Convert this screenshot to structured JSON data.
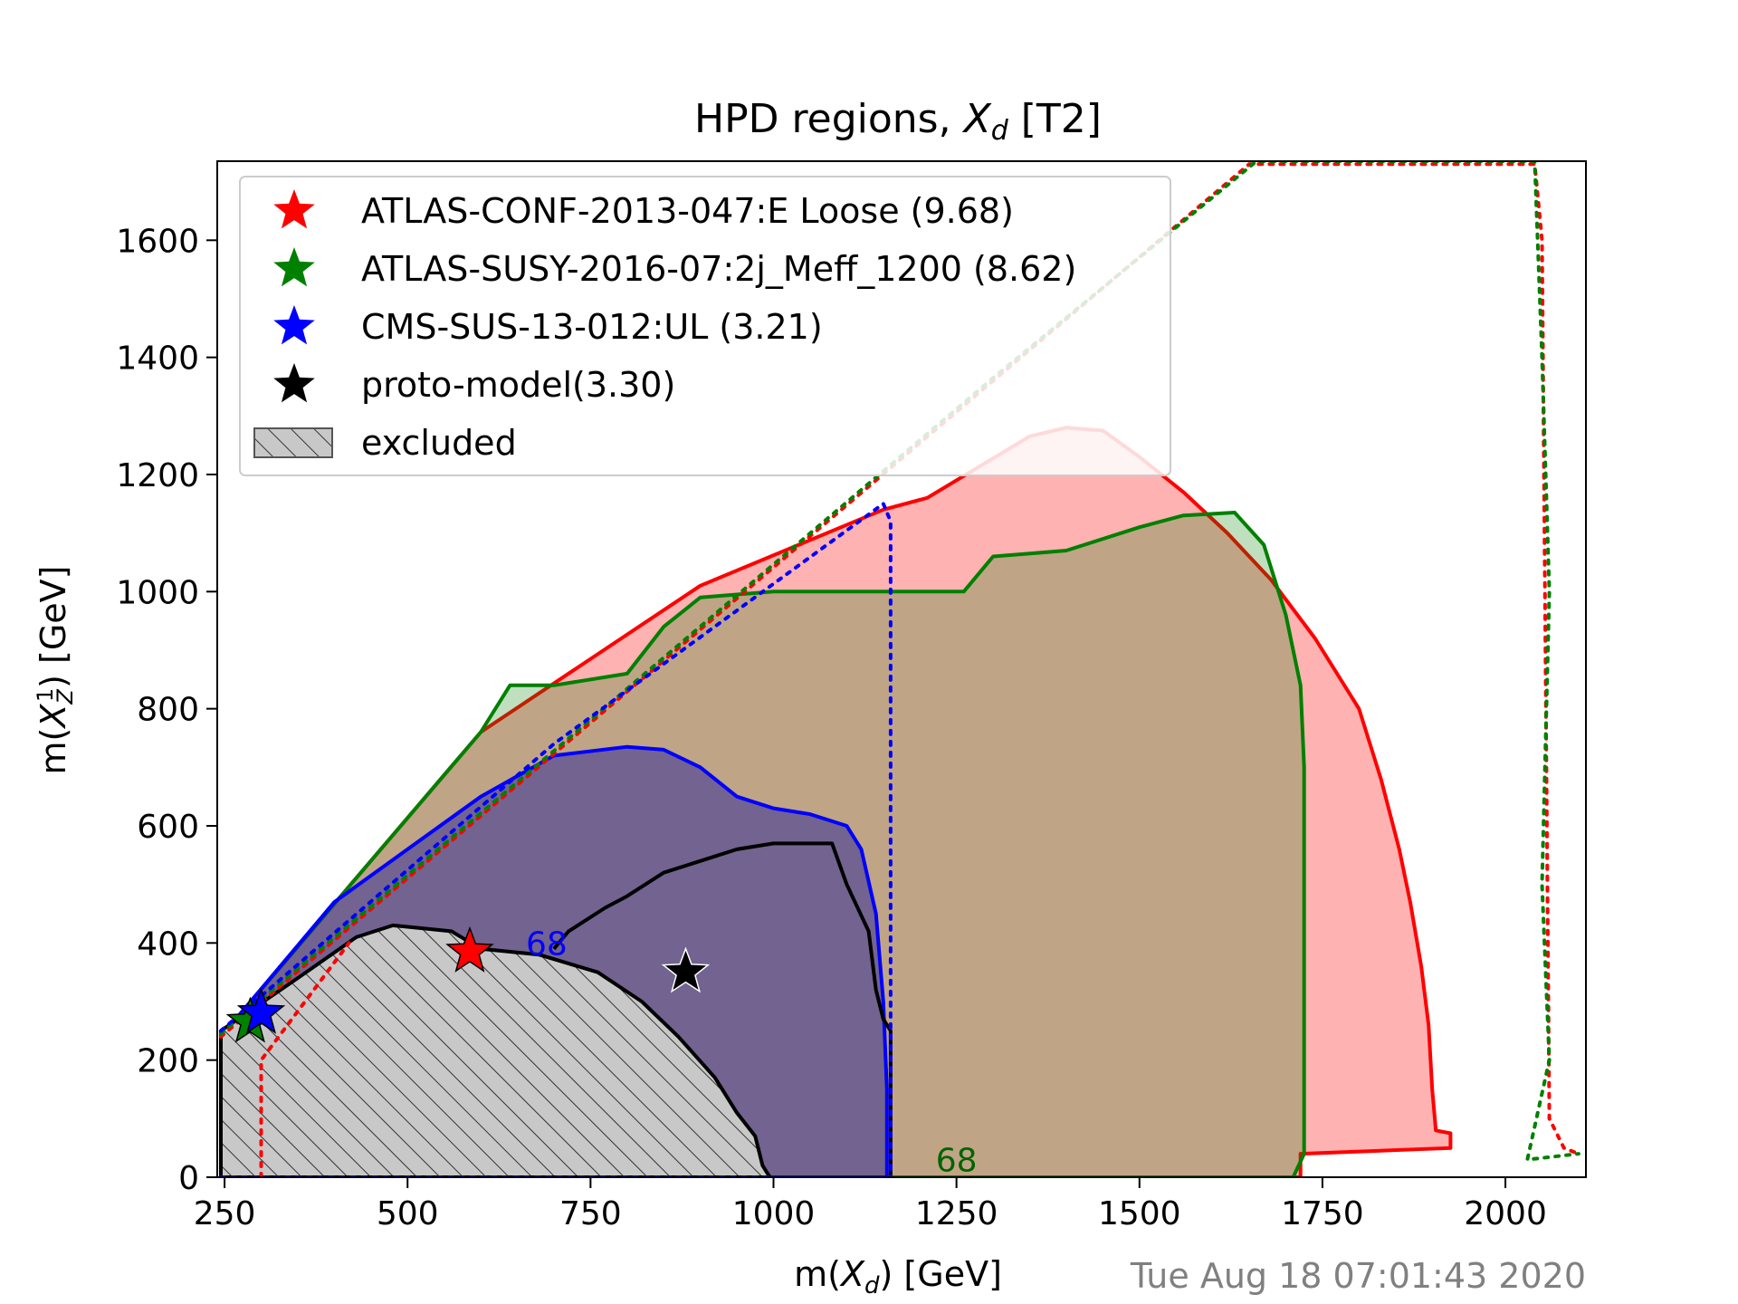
{
  "chart_data": {
    "type": "contour",
    "title_prefix": "HPD regions, ",
    "title_var": "X",
    "title_sub": "d",
    "title_suffix": " [T2]",
    "xlabel_prefix": "m(",
    "xlabel_var": "X",
    "xlabel_sub": "d",
    "xlabel_suffix": ") [GeV]",
    "ylabel_prefix": "m(",
    "ylabel_var": "X",
    "ylabel_sub": "Z",
    "ylabel_sup": "1",
    "ylabel_suffix": ") [GeV]",
    "xlim": [
      240,
      2110
    ],
    "ylim": [
      0,
      1735
    ],
    "xticks": [
      250,
      500,
      750,
      1000,
      1250,
      1500,
      1750,
      2000
    ],
    "yticks": [
      0,
      200,
      400,
      600,
      800,
      1000,
      1200,
      1400,
      1600
    ],
    "timestamp": "Tue Aug 18 07:01:43 2020",
    "legend_position": "upper-left",
    "legend": [
      {
        "label": "ATLAS-CONF-2013-047:E Loose (9.68)",
        "marker": "star",
        "color": "#ff0000"
      },
      {
        "label": "ATLAS-SUSY-2016-07:2j_Meff_1200 (8.62)",
        "marker": "star",
        "color": "#008000"
      },
      {
        "label": "CMS-SUS-13-012:UL (3.21)",
        "marker": "star",
        "color": "#0000ff"
      },
      {
        "label": "proto-model(3.30)",
        "marker": "star",
        "color": "#000000"
      },
      {
        "label": "excluded",
        "marker": "hatch",
        "color": "#c8c8c8"
      }
    ],
    "contour_labels": [
      {
        "text": "68",
        "x": 690,
        "y": 380,
        "color": "#0000ff"
      },
      {
        "text": "68",
        "x": 1250,
        "y": 10,
        "color": "#006400"
      }
    ],
    "best_points": [
      {
        "name": "ATLAS-CONF-2013-047:E Loose",
        "x": 585,
        "y": 385,
        "color": "#ff0000"
      },
      {
        "name": "ATLAS-SUSY-2016-07:2j_Meff_1200",
        "x": 285,
        "y": 265,
        "color": "#008000"
      },
      {
        "name": "CMS-SUS-13-012:UL",
        "x": 300,
        "y": 280,
        "color": "#0000ff"
      },
      {
        "name": "proto-model",
        "x": 880,
        "y": 350,
        "color": "#000000"
      }
    ],
    "regions": [
      {
        "name": "ATLAS-CONF-2013-047:E Loose",
        "fill": "rgba(255,0,0,0.30)",
        "stroke": "#ff0000",
        "points": [
          [
            245,
            0
          ],
          [
            245,
            240
          ],
          [
            600,
            760
          ],
          [
            900,
            1010
          ],
          [
            1150,
            1140
          ],
          [
            1210,
            1160
          ],
          [
            1350,
            1265
          ],
          [
            1400,
            1280
          ],
          [
            1450,
            1275
          ],
          [
            1500,
            1230
          ],
          [
            1560,
            1170
          ],
          [
            1620,
            1100
          ],
          [
            1680,
            1020
          ],
          [
            1740,
            920
          ],
          [
            1800,
            800
          ],
          [
            1830,
            680
          ],
          [
            1855,
            560
          ],
          [
            1870,
            470
          ],
          [
            1885,
            360
          ],
          [
            1895,
            260
          ],
          [
            1900,
            150
          ],
          [
            1905,
            80
          ],
          [
            1925,
            75
          ],
          [
            1925,
            50
          ],
          [
            1720,
            40
          ],
          [
            1720,
            0
          ]
        ]
      },
      {
        "name": "ATLAS-SUSY-2016-07:2j_Meff_1200",
        "fill": "rgba(0,128,0,0.25)",
        "stroke": "#008000",
        "points": [
          [
            245,
            0
          ],
          [
            245,
            240
          ],
          [
            600,
            760
          ],
          [
            640,
            840
          ],
          [
            700,
            840
          ],
          [
            800,
            860
          ],
          [
            850,
            940
          ],
          [
            900,
            990
          ],
          [
            1000,
            1000
          ],
          [
            1100,
            1000
          ],
          [
            1200,
            1000
          ],
          [
            1260,
            1000
          ],
          [
            1300,
            1060
          ],
          [
            1400,
            1070
          ],
          [
            1500,
            1110
          ],
          [
            1560,
            1130
          ],
          [
            1630,
            1135
          ],
          [
            1670,
            1080
          ],
          [
            1700,
            960
          ],
          [
            1720,
            840
          ],
          [
            1725,
            700
          ],
          [
            1725,
            500
          ],
          [
            1725,
            280
          ],
          [
            1725,
            40
          ],
          [
            1710,
            0
          ]
        ]
      },
      {
        "name": "CMS-SUS-13-012:UL",
        "fill": "rgba(0,0,160,0.40)",
        "stroke": "#0000ff",
        "points": [
          [
            245,
            0
          ],
          [
            245,
            240
          ],
          [
            400,
            470
          ],
          [
            500,
            560
          ],
          [
            600,
            650
          ],
          [
            700,
            720
          ],
          [
            800,
            735
          ],
          [
            850,
            730
          ],
          [
            900,
            700
          ],
          [
            950,
            650
          ],
          [
            1000,
            630
          ],
          [
            1050,
            620
          ],
          [
            1100,
            600
          ],
          [
            1120,
            560
          ],
          [
            1140,
            450
          ],
          [
            1150,
            300
          ],
          [
            1155,
            150
          ],
          [
            1155,
            0
          ]
        ]
      },
      {
        "name": "proto-model",
        "fill": "none",
        "stroke": "#000000",
        "points": [
          [
            700,
            390
          ],
          [
            720,
            420
          ],
          [
            770,
            460
          ],
          [
            800,
            480
          ],
          [
            850,
            520
          ],
          [
            900,
            540
          ],
          [
            950,
            560
          ],
          [
            1000,
            570
          ],
          [
            1080,
            570
          ],
          [
            1100,
            500
          ],
          [
            1130,
            420
          ],
          [
            1140,
            320
          ],
          [
            1150,
            270
          ],
          [
            1160,
            250
          ],
          [
            1160,
            0
          ]
        ]
      },
      {
        "name": "excluded",
        "fill": "hatch",
        "stroke": "#000000",
        "points": [
          [
            245,
            0
          ],
          [
            245,
            250
          ],
          [
            350,
            340
          ],
          [
            430,
            410
          ],
          [
            480,
            430
          ],
          [
            560,
            420
          ],
          [
            600,
            390
          ],
          [
            680,
            380
          ],
          [
            760,
            350
          ],
          [
            820,
            300
          ],
          [
            870,
            240
          ],
          [
            920,
            170
          ],
          [
            950,
            110
          ],
          [
            975,
            70
          ],
          [
            985,
            20
          ],
          [
            995,
            0
          ]
        ]
      }
    ],
    "dotted_boundaries": [
      {
        "name": "red-diagonal",
        "color": "#ff0000",
        "points": [
          [
            245,
            240
          ],
          [
            1300,
            1360
          ],
          [
            1650,
            1730
          ],
          [
            2040,
            1730
          ],
          [
            2050,
            1600
          ],
          [
            2060,
            100
          ],
          [
            2080,
            50
          ],
          [
            2100,
            40
          ]
        ]
      },
      {
        "name": "green-diagonal",
        "color": "#008000",
        "points": [
          [
            245,
            245
          ],
          [
            1300,
            1365
          ],
          [
            1660,
            1735
          ],
          [
            2040,
            1735
          ],
          [
            2050,
            1400
          ],
          [
            2060,
            1000
          ],
          [
            2050,
            500
          ],
          [
            2060,
            200
          ],
          [
            2030,
            30
          ],
          [
            2100,
            40
          ]
        ]
      },
      {
        "name": "blue-diagonal",
        "color": "#0000ff",
        "points": [
          [
            245,
            250
          ],
          [
            700,
            740
          ],
          [
            1150,
            1150
          ],
          [
            1160,
            1120
          ],
          [
            1160,
            0
          ]
        ]
      },
      {
        "name": "red-bottom",
        "color": "#ff0000",
        "points": [
          [
            300,
            0
          ],
          [
            300,
            200
          ],
          [
            420,
            400
          ]
        ]
      },
      {
        "name": "blue-bottom",
        "color": "#0000ff",
        "points": [
          [
            245,
            0
          ],
          [
            1160,
            0
          ]
        ]
      }
    ]
  }
}
